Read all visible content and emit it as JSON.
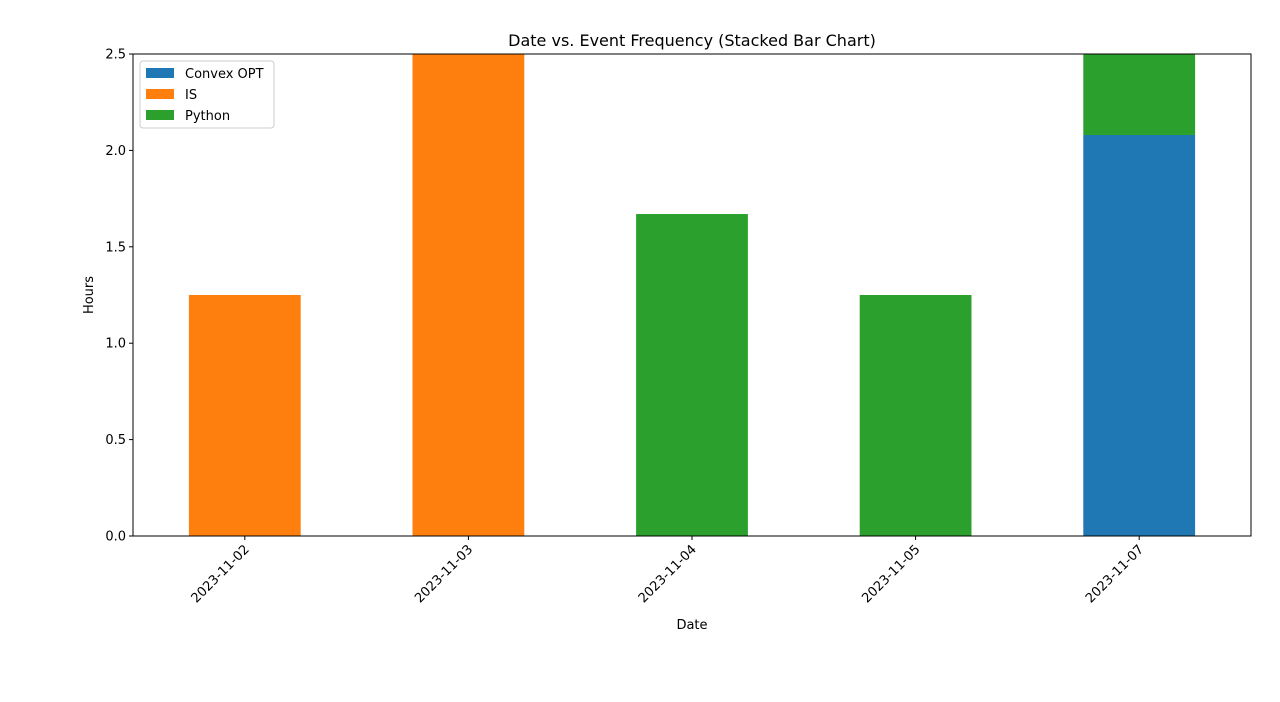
{
  "chart_data": {
    "type": "bar",
    "stacked": true,
    "title": "Date vs. Event Frequency (Stacked Bar Chart)",
    "xlabel": "Date",
    "ylabel": "Hours",
    "categories": [
      "2023-11-02",
      "2023-11-03",
      "2023-11-04",
      "2023-11-05",
      "2023-11-07"
    ],
    "series": [
      {
        "name": "Convex OPT",
        "color": "#1f77b4",
        "values": [
          0,
          0,
          0,
          0,
          2.08
        ]
      },
      {
        "name": "IS",
        "color": "#ff7f0e",
        "values": [
          1.25,
          2.5,
          0,
          0,
          0
        ]
      },
      {
        "name": "Python",
        "color": "#2ca02c",
        "values": [
          0,
          0,
          1.67,
          1.25,
          0.42
        ]
      }
    ],
    "ylim": [
      0,
      2.5
    ],
    "yticks": [
      0.0,
      0.5,
      1.0,
      1.5,
      2.0,
      2.5
    ],
    "ytick_labels": [
      "0.0",
      "0.5",
      "1.0",
      "1.5",
      "2.0",
      "2.5"
    ],
    "x_tick_rotation": 45,
    "legend_position": "top-left",
    "grid": false
  }
}
